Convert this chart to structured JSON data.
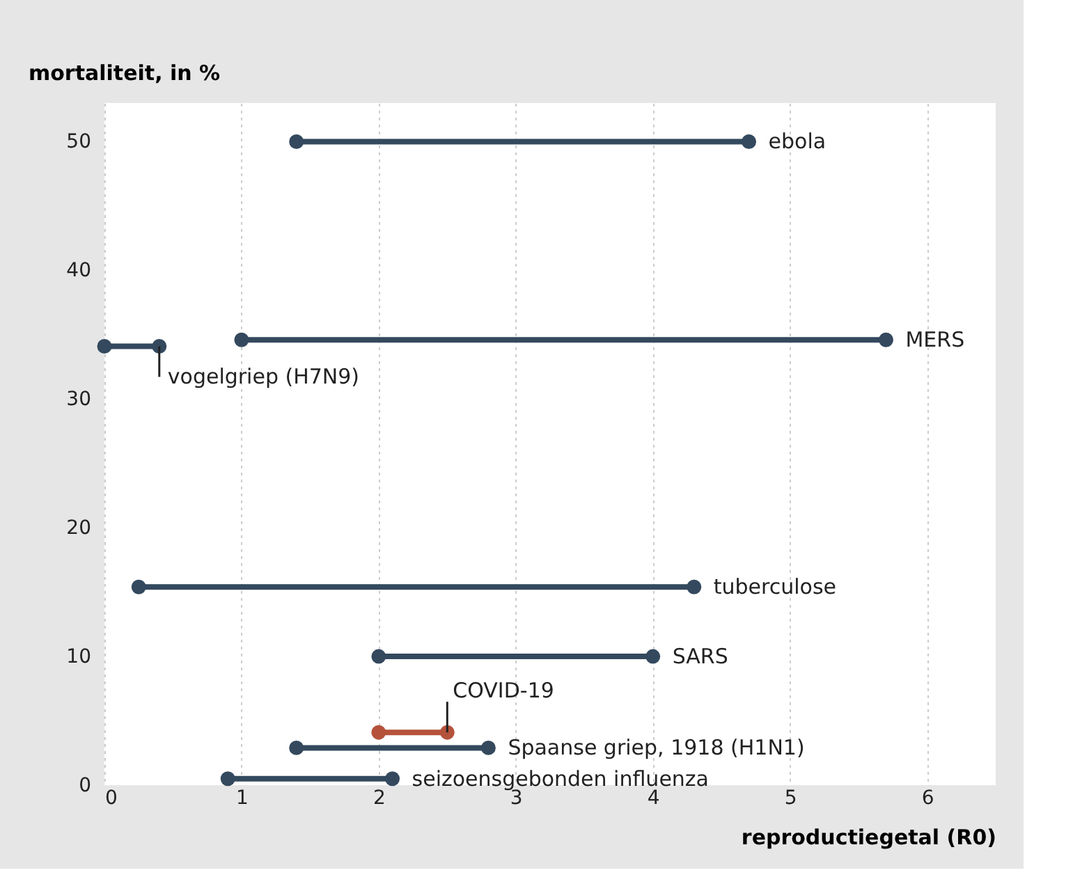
{
  "chart_data": {
    "type": "line",
    "xlabel": "reproductiegetal  (R0)",
    "ylabel": "mortaliteit, in %",
    "xlim": [
      0,
      6.5
    ],
    "xticks": [
      0,
      1,
      2,
      3,
      4,
      5,
      6
    ],
    "ylim": [
      0,
      53
    ],
    "yticks": [
      0,
      10,
      20,
      30,
      40,
      50
    ],
    "grid": "x",
    "marker": "circle",
    "line_style": "solid",
    "series": [
      {
        "name": "ebola",
        "color": "#34495e",
        "x": [
          1.4,
          4.7
        ],
        "values": [
          50,
          50
        ]
      },
      {
        "name": "MERS",
        "color": "#34495e",
        "x": [
          1.0,
          5.7
        ],
        "values": [
          34.6,
          34.6
        ]
      },
      {
        "name": "vogelgriep (H7N9)",
        "color": "#34495e",
        "x": [
          0,
          0.4
        ],
        "values": [
          34.1,
          34.1
        ]
      },
      {
        "name": "tuberculose",
        "color": "#34495e",
        "x": [
          0.25,
          4.3
        ],
        "values": [
          15.4,
          15.4
        ]
      },
      {
        "name": "SARS",
        "color": "#34495e",
        "x": [
          2,
          4
        ],
        "values": [
          10,
          10
        ]
      },
      {
        "name": "COVID-19",
        "color": "#b5523b",
        "x": [
          2,
          2.5
        ],
        "values": [
          4.1,
          4.1
        ]
      },
      {
        "name": "Spaanse griep, 1918 (H1N1)",
        "color": "#34495e",
        "x": [
          1.4,
          2.8
        ],
        "values": [
          2.9,
          2.9
        ]
      },
      {
        "name": "seizoensgebonden influenza",
        "color": "#34495e",
        "x": [
          0.9,
          2.1
        ],
        "values": [
          0.5,
          0.5
        ]
      }
    ]
  }
}
